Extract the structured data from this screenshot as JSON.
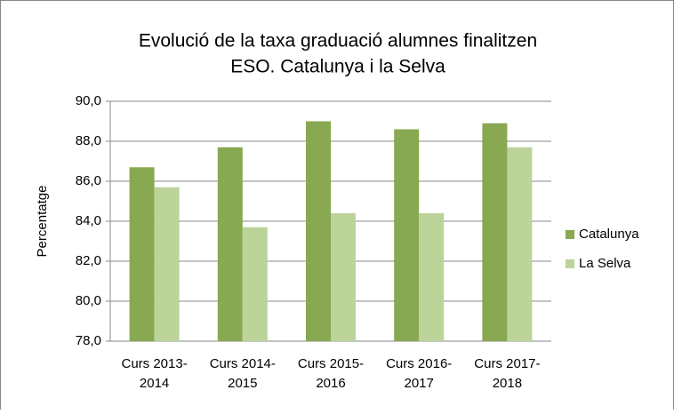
{
  "chart_data": {
    "type": "bar",
    "title": [
      "Evolució de la taxa graduació alumnes finalitzen",
      "ESO. Catalunya i la Selva"
    ],
    "ylabel": "Percentatge",
    "categories": [
      [
        "Curs 2013-",
        "2014"
      ],
      [
        "Curs 2014-",
        "2015"
      ],
      [
        "Curs 2015-",
        "2016"
      ],
      [
        "Curs 2016-",
        "2017"
      ],
      [
        "Curs 2017-",
        "2018"
      ]
    ],
    "series": [
      {
        "name": "Catalunya",
        "color": "#88a851",
        "values": [
          86.7,
          87.7,
          89.0,
          88.6,
          88.9
        ]
      },
      {
        "name": "La Selva",
        "color": "#bcd39a",
        "values": [
          85.7,
          83.7,
          84.4,
          84.4,
          87.7
        ]
      }
    ],
    "ylim": [
      78,
      90
    ],
    "yticks": [
      {
        "value": 78,
        "label": "78,0"
      },
      {
        "value": 80,
        "label": "80,0"
      },
      {
        "value": 82,
        "label": "82,0"
      },
      {
        "value": 84,
        "label": "84,0"
      },
      {
        "value": 86,
        "label": "86,0"
      },
      {
        "value": 88,
        "label": "88,0"
      },
      {
        "value": 90,
        "label": "90,0"
      }
    ],
    "grid": true,
    "legend": "right"
  }
}
